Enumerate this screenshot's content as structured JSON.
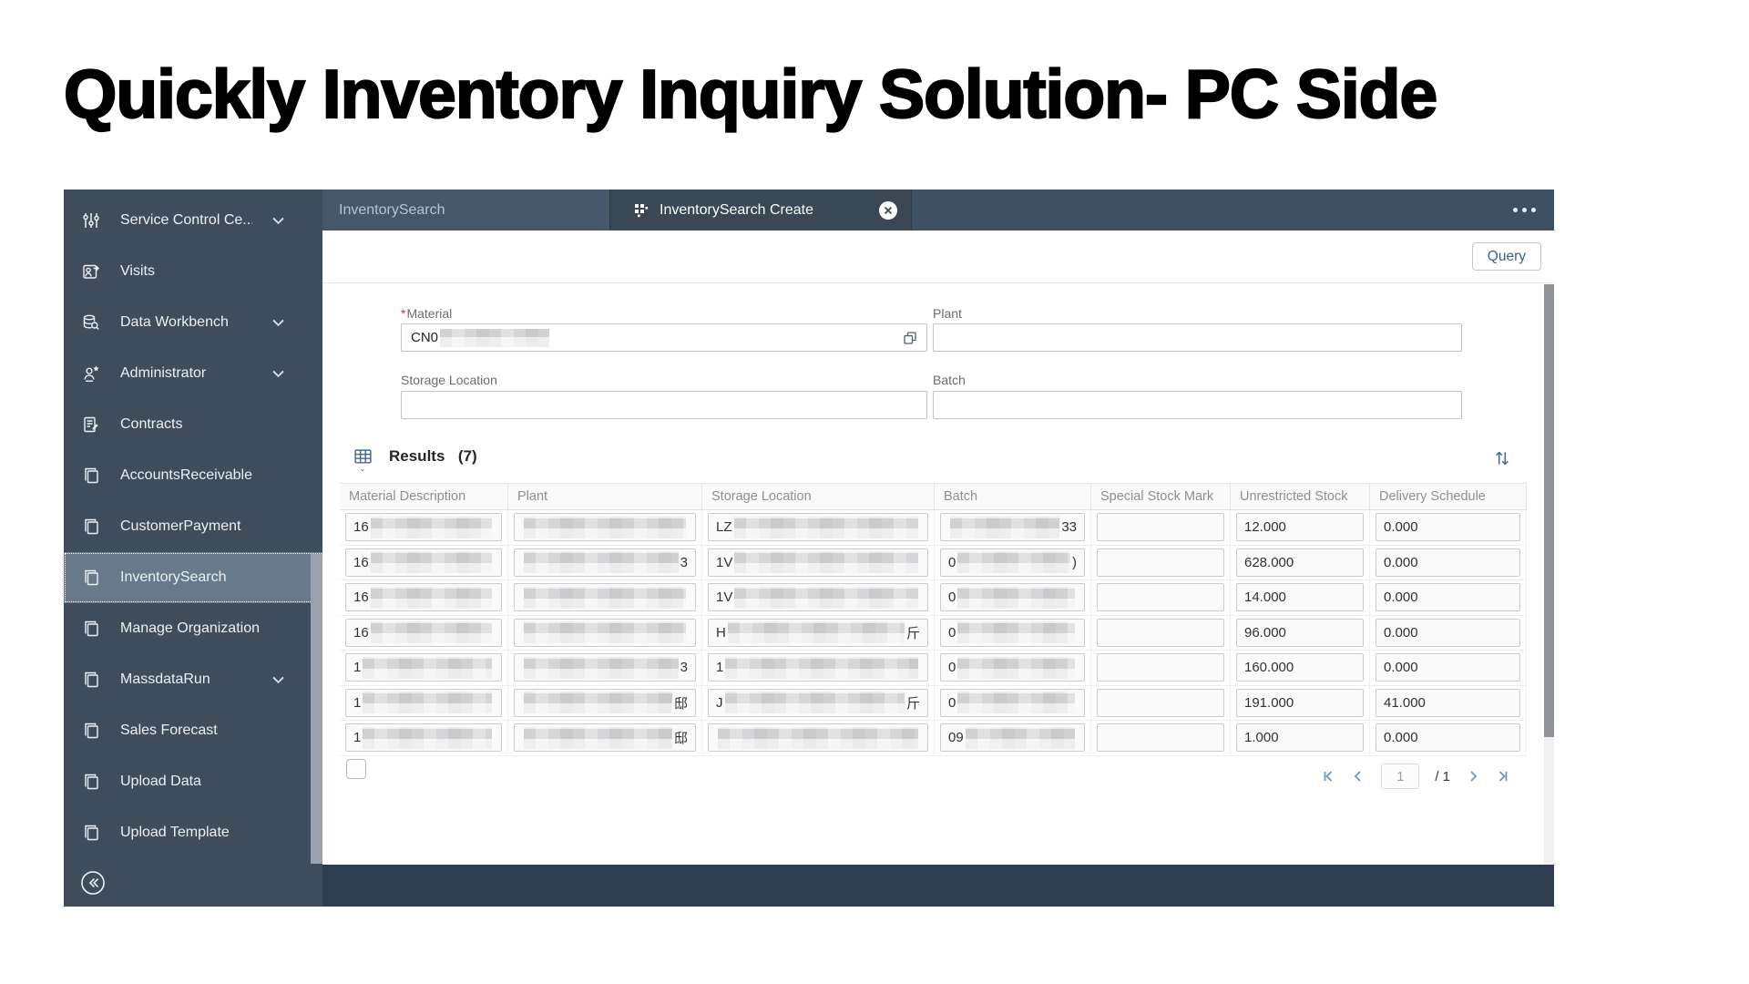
{
  "page": {
    "title": "Quickly Inventory Inquiry Solution- PC Side"
  },
  "colors": {
    "sidebar_bg": "#3E4C5C",
    "sidebar_selected_bg": "#68798C",
    "tabbar_bg": "#3E5064",
    "active_tab_bg": "#3A4856",
    "footer_bg": "#2E3D50",
    "accent_blue": "#35618F",
    "required_asterisk": "#CA3A31"
  },
  "sidebar": {
    "items": [
      {
        "label": "Service Control Ce...",
        "icon": "sliders",
        "chevron": true
      },
      {
        "label": "Visits",
        "icon": "person-visit",
        "chevron": false
      },
      {
        "label": "Data Workbench",
        "icon": "data-workbench",
        "chevron": true
      },
      {
        "label": "Administrator",
        "icon": "person-star",
        "chevron": true
      },
      {
        "label": "Contracts",
        "icon": "contract-doc",
        "chevron": false
      },
      {
        "label": "AccountsReceivable",
        "icon": "copy-pages",
        "chevron": false
      },
      {
        "label": "CustomerPayment",
        "icon": "copy-pages",
        "chevron": false
      },
      {
        "label": "InventorySearch",
        "icon": "copy-pages",
        "chevron": false,
        "selected": true
      },
      {
        "label": "Manage Organization",
        "icon": "copy-pages",
        "chevron": false
      },
      {
        "label": "MassdataRun",
        "icon": "copy-pages",
        "chevron": true
      },
      {
        "label": "Sales Forecast",
        "icon": "copy-pages",
        "chevron": false
      },
      {
        "label": "Upload Data",
        "icon": "copy-pages",
        "chevron": false
      },
      {
        "label": "Upload Template",
        "icon": "copy-pages",
        "chevron": false
      }
    ]
  },
  "tabs": {
    "inactive": {
      "label": "InventorySearch"
    },
    "active": {
      "label": "InventorySearch Create",
      "closable": true
    }
  },
  "toolbar": {
    "query_label": "Query"
  },
  "form": {
    "material": {
      "label": "Material",
      "required": true,
      "value_visible": "CN0",
      "value_censored": true
    },
    "plant": {
      "label": "Plant",
      "value": ""
    },
    "storage_location": {
      "label": "Storage Location",
      "value": ""
    },
    "batch": {
      "label": "Batch",
      "value": ""
    }
  },
  "results": {
    "title": "Results",
    "count": "(7)"
  },
  "table": {
    "headers": [
      "Material Description",
      "Plant",
      "Storage Location",
      "Batch",
      "Special Stock Mark",
      "Unrestricted Stock",
      "Delivery Schedule"
    ],
    "rows": [
      {
        "material_description": {
          "prefix": "16",
          "censored": true
        },
        "plant": {
          "censored": true
        },
        "storage_location": {
          "prefix": "LZ",
          "censored": true
        },
        "batch": {
          "censored": true,
          "suffix": "33"
        },
        "special_stock_mark": "",
        "unrestricted_stock": "12.000",
        "delivery_schedule": "0.000"
      },
      {
        "material_description": {
          "prefix": "16",
          "censored": true
        },
        "plant": {
          "censored": true,
          "suffix": "3"
        },
        "storage_location": {
          "prefix": "1V",
          "censored": true
        },
        "batch": {
          "prefix": "0",
          "censored": true,
          "suffix": ")"
        },
        "special_stock_mark": "",
        "unrestricted_stock": "628.000",
        "delivery_schedule": "0.000"
      },
      {
        "material_description": {
          "prefix": "16",
          "censored": true
        },
        "plant": {
          "censored": true
        },
        "storage_location": {
          "prefix": "1V",
          "censored": true
        },
        "batch": {
          "prefix": "0",
          "censored": true
        },
        "special_stock_mark": "",
        "unrestricted_stock": "14.000",
        "delivery_schedule": "0.000"
      },
      {
        "material_description": {
          "prefix": "16",
          "censored": true
        },
        "plant": {
          "censored": true
        },
        "storage_location": {
          "prefix": "H",
          "censored": true,
          "suffix": "斤"
        },
        "batch": {
          "prefix": "0",
          "censored": true
        },
        "special_stock_mark": "",
        "unrestricted_stock": "96.000",
        "delivery_schedule": "0.000"
      },
      {
        "material_description": {
          "prefix": "1",
          "censored": true
        },
        "plant": {
          "censored": true,
          "suffix": "3"
        },
        "storage_location": {
          "prefix": "1",
          "censored": true
        },
        "batch": {
          "prefix": "0",
          "censored": true
        },
        "special_stock_mark": "",
        "unrestricted_stock": "160.000",
        "delivery_schedule": "0.000"
      },
      {
        "material_description": {
          "prefix": "1",
          "censored": true
        },
        "plant": {
          "censored": true,
          "suffix": "邸"
        },
        "storage_location": {
          "prefix": "J",
          "censored": true,
          "suffix": "斤"
        },
        "batch": {
          "prefix": "0",
          "censored": true
        },
        "special_stock_mark": "",
        "unrestricted_stock": "191.000",
        "delivery_schedule": "41.000"
      },
      {
        "material_description": {
          "prefix": "1",
          "censored": true
        },
        "plant": {
          "censored": true,
          "suffix": "邸"
        },
        "storage_location": {
          "censored": true
        },
        "batch": {
          "prefix": "09",
          "censored": true
        },
        "special_stock_mark": "",
        "unrestricted_stock": "1.000",
        "delivery_schedule": "0.000"
      }
    ]
  },
  "pagination": {
    "current_page": "1",
    "page_total": "/ 1"
  }
}
